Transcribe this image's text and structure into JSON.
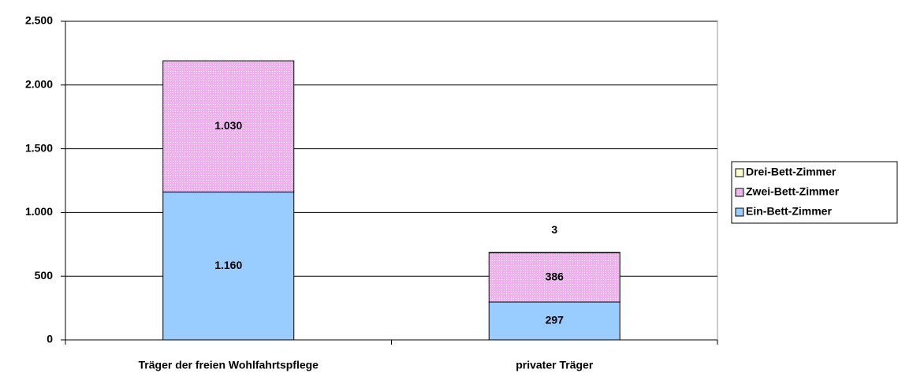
{
  "chart_data": {
    "type": "stacked_bar",
    "categories": [
      "Träger der freien Wohlfahrtspflege",
      "privater Träger"
    ],
    "series": [
      {
        "name": "Ein-Bett-Zimmer",
        "color": "#99ccff",
        "values": [
          1160,
          297
        ],
        "value_labels": [
          "1.160",
          "297"
        ]
      },
      {
        "name": "Zwei-Bett-Zimmer",
        "color": "#f0b0f0",
        "values": [
          1030,
          386
        ],
        "value_labels": [
          "1.030",
          "386"
        ]
      },
      {
        "name": "Drei-Bett-Zimmer",
        "color": "#ffffcc",
        "values": [
          null,
          3
        ],
        "value_labels": [
          null,
          "3"
        ]
      }
    ],
    "ylim": [
      0,
      2500
    ],
    "yticks": [
      0,
      500,
      {
        "value": 1000,
        "label": "1.000"
      },
      {
        "value": 1500,
        "label": "1.500"
      },
      {
        "value": 2000,
        "label": "2.000"
      },
      {
        "value": 2500,
        "label": "2.500"
      }
    ],
    "grid": true,
    "legend": "right"
  }
}
